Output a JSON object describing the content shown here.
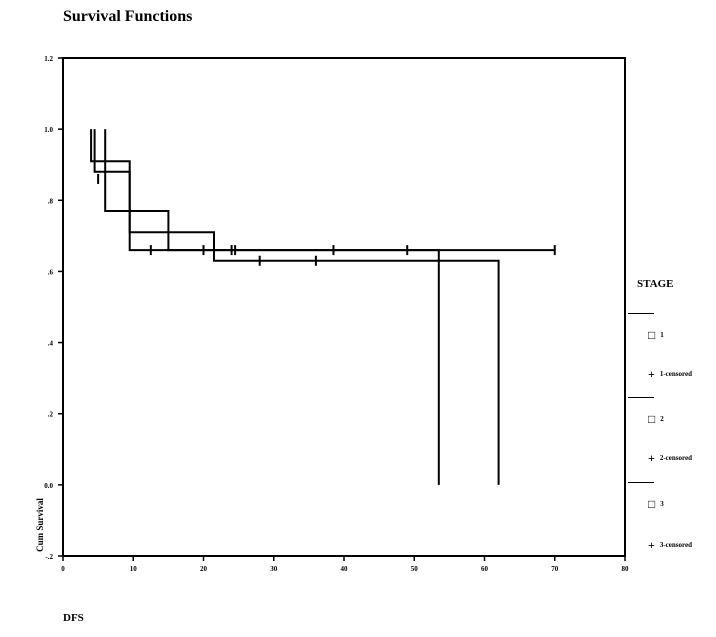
{
  "title": "Survival Functions",
  "xlabel": "DFS",
  "ylabel": "Cum Survival",
  "legend": {
    "title": "STAGE",
    "items": [
      {
        "symbol": "□",
        "label": "1"
      },
      {
        "symbol": "+",
        "label": "1-censored"
      },
      {
        "symbol": "□",
        "label": "2"
      },
      {
        "symbol": "+",
        "label": "2-censored"
      },
      {
        "symbol": "□",
        "label": "3"
      },
      {
        "symbol": "+",
        "label": "3-censored"
      }
    ]
  },
  "chart_data": {
    "type": "line",
    "title": "Survival Functions",
    "xlabel": "DFS",
    "ylabel": "Cum Survival",
    "xlim": [
      0,
      80
    ],
    "ylim": [
      -0.2,
      1.2
    ],
    "x_ticks": [
      0,
      10,
      20,
      30,
      40,
      50,
      60,
      70,
      80
    ],
    "y_ticks": [
      -0.2,
      0.0,
      0.2,
      0.4,
      0.6,
      0.8,
      1.0,
      1.2
    ],
    "x_tick_labels": [
      "0",
      "10",
      "20",
      "30",
      "40",
      "50",
      "60",
      "70",
      "80"
    ],
    "y_tick_labels": [
      "-.2",
      "0.0",
      ".2",
      ".4",
      ".6",
      ".8",
      "1.0",
      "1.2"
    ],
    "series": [
      {
        "name": "1",
        "steps": [
          [
            4,
            1.0
          ],
          [
            4,
            0.91
          ],
          [
            9.5,
            0.91
          ],
          [
            9.5,
            0.71
          ],
          [
            21.5,
            0.71
          ],
          [
            21.5,
            0.63
          ],
          [
            62,
            0.63
          ],
          [
            62,
            0.0
          ]
        ],
        "censored": [
          [
            28,
            0.63
          ],
          [
            36,
            0.63
          ]
        ]
      },
      {
        "name": "2",
        "steps": [
          [
            4.5,
            1.0
          ],
          [
            4.5,
            0.88
          ],
          [
            9.5,
            0.88
          ],
          [
            9.5,
            0.66
          ],
          [
            70,
            0.66
          ]
        ],
        "censored": [
          [
            12.5,
            0.66
          ],
          [
            20,
            0.66
          ],
          [
            24,
            0.66
          ],
          [
            24.5,
            0.66
          ],
          [
            38.5,
            0.66
          ],
          [
            49,
            0.66
          ],
          [
            70,
            0.66
          ]
        ]
      },
      {
        "name": "3",
        "steps": [
          [
            6,
            1.0
          ],
          [
            6,
            0.77
          ],
          [
            15,
            0.77
          ],
          [
            15,
            0.66
          ],
          [
            53.5,
            0.66
          ],
          [
            53.5,
            0.0
          ]
        ],
        "censored": [
          [
            5,
            0.86
          ]
        ]
      }
    ],
    "grid": false,
    "legend_position": "right"
  }
}
